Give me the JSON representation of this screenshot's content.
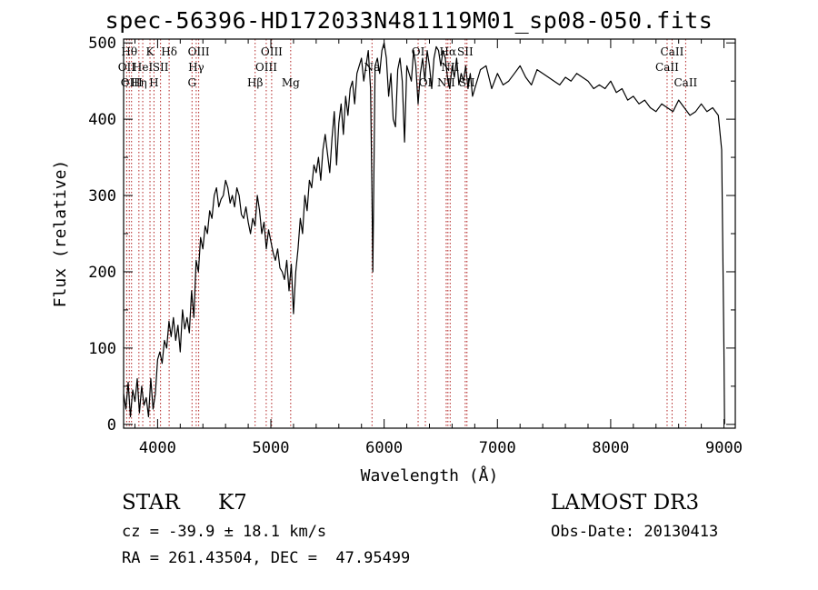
{
  "chart_data": {
    "type": "line",
    "title": "spec-56396-HD172033N481119M01_sp08-050.fits",
    "xlabel": "Wavelength (Å)",
    "ylabel": "Flux (relative)",
    "xlim": [
      3700,
      9100
    ],
    "ylim": [
      -5,
      505
    ],
    "xticks": [
      4000,
      5000,
      6000,
      7000,
      8000,
      9000
    ],
    "yticks": [
      0,
      100,
      200,
      300,
      400,
      500
    ],
    "grid": false,
    "series": [
      {
        "name": "flux",
        "x": [
          3700,
          3720,
          3740,
          3760,
          3780,
          3800,
          3820,
          3840,
          3860,
          3880,
          3900,
          3920,
          3940,
          3960,
          3980,
          4000,
          4020,
          4040,
          4060,
          4080,
          4100,
          4120,
          4140,
          4160,
          4180,
          4200,
          4220,
          4240,
          4260,
          4280,
          4300,
          4320,
          4340,
          4360,
          4380,
          4400,
          4420,
          4440,
          4460,
          4480,
          4500,
          4520,
          4540,
          4560,
          4580,
          4600,
          4620,
          4640,
          4660,
          4680,
          4700,
          4720,
          4740,
          4760,
          4780,
          4800,
          4820,
          4840,
          4860,
          4880,
          4900,
          4920,
          4940,
          4960,
          4980,
          5000,
          5020,
          5040,
          5060,
          5080,
          5100,
          5120,
          5140,
          5160,
          5180,
          5200,
          5220,
          5240,
          5260,
          5280,
          5300,
          5320,
          5340,
          5360,
          5380,
          5400,
          5420,
          5440,
          5460,
          5480,
          5500,
          5520,
          5540,
          5560,
          5580,
          5600,
          5620,
          5640,
          5660,
          5680,
          5700,
          5720,
          5740,
          5760,
          5780,
          5800,
          5820,
          5840,
          5860,
          5880,
          5893,
          5900,
          5920,
          5940,
          5960,
          5980,
          6000,
          6020,
          6040,
          6060,
          6080,
          6100,
          6120,
          6140,
          6160,
          6180,
          6200,
          6220,
          6240,
          6260,
          6280,
          6300,
          6320,
          6340,
          6360,
          6380,
          6400,
          6420,
          6440,
          6460,
          6480,
          6500,
          6520,
          6540,
          6563,
          6580,
          6600,
          6620,
          6640,
          6660,
          6680,
          6700,
          6720,
          6740,
          6760,
          6780,
          6800,
          6850,
          6900,
          6950,
          7000,
          7050,
          7100,
          7150,
          7200,
          7250,
          7300,
          7350,
          7400,
          7450,
          7500,
          7550,
          7600,
          7650,
          7700,
          7750,
          7800,
          7850,
          7900,
          7950,
          8000,
          8050,
          8100,
          8150,
          8200,
          8250,
          8300,
          8350,
          8400,
          8450,
          8500,
          8550,
          8600,
          8650,
          8700,
          8750,
          8800,
          8850,
          8900,
          8950,
          8980,
          9000,
          9005
        ],
        "values": [
          40,
          20,
          55,
          10,
          45,
          30,
          60,
          15,
          50,
          25,
          35,
          10,
          60,
          20,
          40,
          85,
          95,
          80,
          110,
          100,
          135,
          115,
          140,
          110,
          130,
          95,
          150,
          125,
          140,
          120,
          175,
          140,
          215,
          200,
          245,
          230,
          260,
          250,
          280,
          270,
          300,
          310,
          285,
          295,
          300,
          320,
          310,
          290,
          300,
          285,
          310,
          300,
          275,
          270,
          285,
          265,
          250,
          270,
          260,
          300,
          280,
          250,
          265,
          230,
          255,
          240,
          225,
          215,
          230,
          205,
          200,
          190,
          215,
          175,
          210,
          145,
          200,
          230,
          270,
          250,
          300,
          280,
          320,
          310,
          340,
          330,
          350,
          320,
          360,
          380,
          355,
          330,
          375,
          410,
          340,
          395,
          420,
          380,
          430,
          405,
          440,
          450,
          420,
          460,
          470,
          480,
          450,
          470,
          490,
          440,
          300,
          200,
          470,
          480,
          460,
          490,
          500,
          480,
          430,
          460,
          400,
          390,
          465,
          480,
          450,
          370,
          470,
          460,
          450,
          490,
          470,
          420,
          460,
          480,
          450,
          490,
          470,
          440,
          480,
          495,
          490,
          470,
          490,
          480,
          450,
          440,
          470,
          455,
          480,
          445,
          460,
          450,
          470,
          440,
          460,
          430,
          440,
          465,
          470,
          440,
          460,
          445,
          450,
          460,
          470,
          455,
          445,
          465,
          460,
          455,
          450,
          445,
          455,
          450,
          460,
          455,
          450,
          440,
          445,
          440,
          450,
          435,
          440,
          425,
          430,
          420,
          425,
          415,
          410,
          420,
          415,
          410,
          425,
          415,
          405,
          410,
          420,
          410,
          415,
          405,
          360,
          100,
          0
        ]
      }
    ],
    "line_ids": [
      {
        "wl": 3727,
        "label": "OII",
        "row": 1
      },
      {
        "wl": 3750,
        "label": "Hθ",
        "row": 0
      },
      {
        "wl": 3770,
        "label": "OIII",
        "row": 2
      },
      {
        "wl": 3835,
        "label": "Hη",
        "row": 2
      },
      {
        "wl": 3869,
        "label": "HeI",
        "row": 1
      },
      {
        "wl": 3933,
        "label": "K",
        "row": 0
      },
      {
        "wl": 3968,
        "label": "H",
        "row": 2
      },
      {
        "wl": 4026,
        "label": "SII",
        "row": 1
      },
      {
        "wl": 4102,
        "label": "Hδ",
        "row": 0
      },
      {
        "wl": 4304,
        "label": "G",
        "row": 2
      },
      {
        "wl": 4341,
        "label": "Hγ",
        "row": 1
      },
      {
        "wl": 4363,
        "label": "OIII",
        "row": 0
      },
      {
        "wl": 4861,
        "label": "Hβ",
        "row": 2
      },
      {
        "wl": 4959,
        "label": "OIII",
        "row": 1
      },
      {
        "wl": 5007,
        "label": "OIII",
        "row": 0
      },
      {
        "wl": 5175,
        "label": "Mg",
        "row": 2
      },
      {
        "wl": 5893,
        "label": "Na",
        "row": 1
      },
      {
        "wl": 6300,
        "label": "OI",
        "row": 0
      },
      {
        "wl": 6364,
        "label": "OI",
        "row": 2
      },
      {
        "wl": 6548,
        "label": "NII",
        "row": 2
      },
      {
        "wl": 6563,
        "label": "Hα",
        "row": 0
      },
      {
        "wl": 6583,
        "label": "NII",
        "row": 1
      },
      {
        "wl": 6716,
        "label": "SII",
        "row": 0
      },
      {
        "wl": 6731,
        "label": "SII",
        "row": 2
      },
      {
        "wl": 8498,
        "label": "CaII",
        "row": 1
      },
      {
        "wl": 8542,
        "label": "CaII",
        "row": 0
      },
      {
        "wl": 8662,
        "label": "CaII",
        "row": 2
      }
    ]
  },
  "info": {
    "object_class": "STAR",
    "subclass": "K7",
    "survey": "LAMOST DR3",
    "cz": "cz = -39.9 ± 18.1 km/s",
    "obs_date": "Obs-Date: 20130413",
    "coords": "RA = 261.43504, DEC =  47.95499"
  }
}
